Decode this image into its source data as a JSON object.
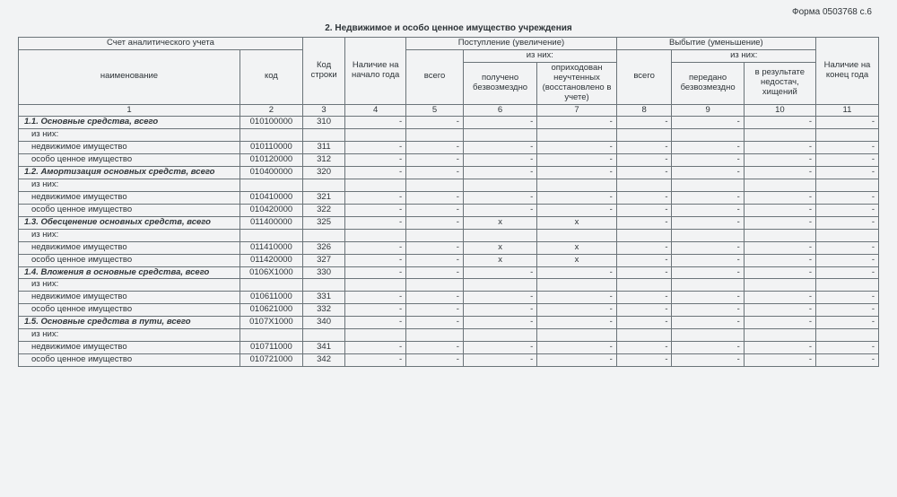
{
  "form_code": "Форма 0503768 с.6",
  "section_title": "2. Недвижимое и особо ценное имущество учреждения",
  "header": {
    "acct": "Счет аналитического учета",
    "name": "наименование",
    "code": "код",
    "line": "Код строки",
    "begin": "Наличие на начало года",
    "in_group": "Поступление (увеличение)",
    "out_group": "Выбытие (уменьшение)",
    "end": "Наличие на конец года",
    "total": "всего",
    "of_which": "из них:",
    "in1": "получено безвозмездно",
    "in2": "оприходован неучтенных (восстановлено в учете)",
    "out1": "передано безвозмездно",
    "out2": "в результате недостач, хищений"
  },
  "num": [
    "1",
    "2",
    "3",
    "4",
    "5",
    "6",
    "7",
    "8",
    "9",
    "10",
    "11"
  ],
  "rows": [
    {
      "name": "1.1. Основные средства, всего",
      "bold": true,
      "code": "010100000",
      "line": "310",
      "cells": [
        "-",
        "-",
        "-",
        "-",
        "-",
        "-",
        "-",
        "-"
      ]
    },
    {
      "name": "из них:",
      "indent": true,
      "code": "",
      "line": "",
      "cells": [
        "",
        "",
        "",
        "",
        "",
        "",
        "",
        ""
      ]
    },
    {
      "name": "недвижимое имущество",
      "indent": true,
      "code": "010110000",
      "line": "311",
      "cells": [
        "-",
        "-",
        "-",
        "-",
        "-",
        "-",
        "-",
        "-"
      ]
    },
    {
      "name": "особо ценное имущество",
      "indent": true,
      "code": "010120000",
      "line": "312",
      "cells": [
        "-",
        "-",
        "-",
        "-",
        "-",
        "-",
        "-",
        "-"
      ]
    },
    {
      "name": "1.2. Амортизация основных средств, всего",
      "bold": true,
      "code": "010400000",
      "line": "320",
      "cells": [
        "-",
        "-",
        "-",
        "-",
        "-",
        "-",
        "-",
        "-"
      ]
    },
    {
      "name": "из них:",
      "indent": true,
      "code": "",
      "line": "",
      "cells": [
        "",
        "",
        "",
        "",
        "",
        "",
        "",
        ""
      ]
    },
    {
      "name": "недвижимое имущество",
      "indent": true,
      "code": "010410000",
      "line": "321",
      "cells": [
        "-",
        "-",
        "-",
        "-",
        "-",
        "-",
        "-",
        "-"
      ]
    },
    {
      "name": "особо ценное имущество",
      "indent": true,
      "code": "010420000",
      "line": "322",
      "cells": [
        "-",
        "-",
        "-",
        "-",
        "-",
        "-",
        "-",
        "-"
      ]
    },
    {
      "name": "1.3. Обесценение основных средств, всего",
      "bold": true,
      "code": "011400000",
      "line": "325",
      "cells": [
        "-",
        "-",
        "x",
        "x",
        "-",
        "-",
        "-",
        "-"
      ]
    },
    {
      "name": "из них:",
      "indent": true,
      "code": "",
      "line": "",
      "cells": [
        "",
        "",
        "",
        "",
        "",
        "",
        "",
        ""
      ]
    },
    {
      "name": "недвижимое имущество",
      "indent": true,
      "code": "011410000",
      "line": "326",
      "cells": [
        "-",
        "-",
        "x",
        "x",
        "-",
        "-",
        "-",
        "-"
      ]
    },
    {
      "name": "особо ценное имущество",
      "indent": true,
      "code": "011420000",
      "line": "327",
      "cells": [
        "-",
        "-",
        "x",
        "x",
        "-",
        "-",
        "-",
        "-"
      ]
    },
    {
      "name": "1.4. Вложения в основные средства, всего",
      "bold": true,
      "code": "0106X1000",
      "line": "330",
      "cells": [
        "-",
        "-",
        "-",
        "-",
        "-",
        "-",
        "-",
        "-"
      ]
    },
    {
      "name": "из них:",
      "indent": true,
      "code": "",
      "line": "",
      "cells": [
        "",
        "",
        "",
        "",
        "",
        "",
        "",
        ""
      ]
    },
    {
      "name": "недвижимое имущество",
      "indent": true,
      "code": "010611000",
      "line": "331",
      "cells": [
        "-",
        "-",
        "-",
        "-",
        "-",
        "-",
        "-",
        "-"
      ]
    },
    {
      "name": "особо ценное имущество",
      "indent": true,
      "code": "010621000",
      "line": "332",
      "cells": [
        "-",
        "-",
        "-",
        "-",
        "-",
        "-",
        "-",
        "-"
      ]
    },
    {
      "name": "1.5. Основные средства в пути, всего",
      "bold": true,
      "code": "0107X1000",
      "line": "340",
      "cells": [
        "-",
        "-",
        "-",
        "-",
        "-",
        "-",
        "-",
        "-"
      ]
    },
    {
      "name": "из них:",
      "indent": true,
      "code": "",
      "line": "",
      "cells": [
        "",
        "",
        "",
        "",
        "",
        "",
        "",
        ""
      ]
    },
    {
      "name": "недвижимое имущество",
      "indent": true,
      "code": "010711000",
      "line": "341",
      "cells": [
        "-",
        "-",
        "-",
        "-",
        "-",
        "-",
        "-",
        "-"
      ]
    },
    {
      "name": "особо ценное имущество",
      "indent": true,
      "code": "010721000",
      "line": "342",
      "cells": [
        "-",
        "-",
        "-",
        "-",
        "-",
        "-",
        "-",
        "-"
      ]
    }
  ]
}
